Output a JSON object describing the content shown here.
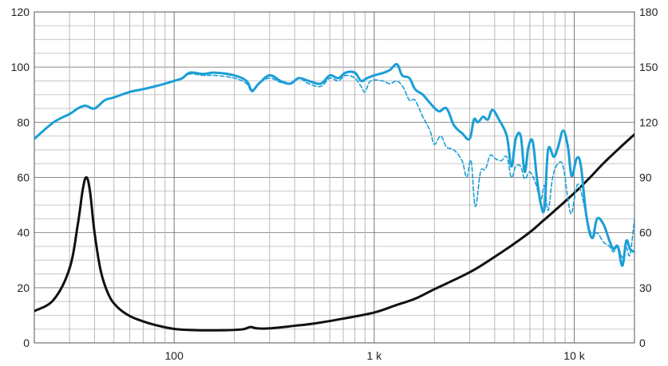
{
  "chart_data": {
    "type": "line",
    "title": "",
    "xlabel": "",
    "ylabel": "",
    "y2label": "",
    "xscale": "log",
    "xlim": [
      20,
      20000
    ],
    "ylim": [
      0,
      120
    ],
    "y2lim": [
      0,
      180
    ],
    "grid": true,
    "x_ticks": [
      {
        "value": 100,
        "label": "100"
      },
      {
        "value": 1000,
        "label": "1 k"
      },
      {
        "value": 10000,
        "label": "10 k"
      }
    ],
    "y_ticks": [
      {
        "value": 0,
        "label": "0"
      },
      {
        "value": 20,
        "label": "20"
      },
      {
        "value": 40,
        "label": "40"
      },
      {
        "value": 60,
        "label": "60"
      },
      {
        "value": 80,
        "label": "80"
      },
      {
        "value": 100,
        "label": "100"
      },
      {
        "value": 120,
        "label": "120"
      }
    ],
    "y2_ticks": [
      {
        "value": 0,
        "label": "0"
      },
      {
        "value": 30,
        "label": "30"
      },
      {
        "value": 60,
        "label": "60"
      },
      {
        "value": 90,
        "label": "90"
      },
      {
        "value": 120,
        "label": "120"
      },
      {
        "value": 150,
        "label": "150"
      },
      {
        "value": 180,
        "label": "180"
      }
    ],
    "series": [
      {
        "axis": "y2",
        "style": "solid",
        "color": "#111111",
        "points": [
          [
            20,
            17.3
          ],
          [
            25,
            23.5
          ],
          [
            30,
            40.5
          ],
          [
            33,
            64.5
          ],
          [
            35,
            84
          ],
          [
            36.5,
            90
          ],
          [
            38,
            82
          ],
          [
            40,
            60
          ],
          [
            43,
            39
          ],
          [
            47,
            26.3
          ],
          [
            52,
            19.5
          ],
          [
            60,
            14.6
          ],
          [
            70,
            11.7
          ],
          [
            80,
            9.8
          ],
          [
            100,
            7.6
          ],
          [
            130,
            6.9
          ],
          [
            180,
            6.9
          ],
          [
            220,
            7.4
          ],
          [
            240,
            8.6
          ],
          [
            260,
            7.9
          ],
          [
            300,
            7.9
          ],
          [
            400,
            9.3
          ],
          [
            500,
            10.5
          ],
          [
            700,
            13.2
          ],
          [
            1000,
            16.5
          ],
          [
            1300,
            20.7
          ],
          [
            1600,
            24
          ],
          [
            2000,
            29.2
          ],
          [
            3000,
            38.4
          ],
          [
            4000,
            46.8
          ],
          [
            5000,
            53.9
          ],
          [
            6000,
            60.2
          ],
          [
            7000,
            66.5
          ],
          [
            8000,
            72
          ],
          [
            10000,
            81.5
          ],
          [
            12000,
            90
          ],
          [
            14000,
            97.7
          ],
          [
            17000,
            106.4
          ],
          [
            20000,
            113.4
          ]
        ]
      },
      {
        "axis": "y",
        "style": "solid",
        "color": "#1a9ed6",
        "points": [
          [
            20,
            74
          ],
          [
            25,
            80
          ],
          [
            30,
            83
          ],
          [
            33,
            85
          ],
          [
            36,
            86
          ],
          [
            40,
            85
          ],
          [
            45,
            88
          ],
          [
            50,
            89
          ],
          [
            60,
            91
          ],
          [
            70,
            92
          ],
          [
            80,
            93
          ],
          [
            90,
            94
          ],
          [
            100,
            95
          ],
          [
            110,
            96
          ],
          [
            120,
            98
          ],
          [
            140,
            97.5
          ],
          [
            160,
            98
          ],
          [
            200,
            97
          ],
          [
            230,
            95
          ],
          [
            245,
            91.5
          ],
          [
            265,
            94
          ],
          [
            300,
            97
          ],
          [
            340,
            95
          ],
          [
            380,
            94
          ],
          [
            420,
            96
          ],
          [
            470,
            95
          ],
          [
            540,
            94
          ],
          [
            600,
            97
          ],
          [
            660,
            96
          ],
          [
            720,
            98
          ],
          [
            800,
            98
          ],
          [
            860,
            95
          ],
          [
            920,
            96
          ],
          [
            1000,
            97
          ],
          [
            1120,
            98
          ],
          [
            1200,
            99
          ],
          [
            1300,
            101
          ],
          [
            1380,
            97
          ],
          [
            1500,
            96
          ],
          [
            1600,
            92
          ],
          [
            1750,
            90
          ],
          [
            1900,
            87
          ],
          [
            2100,
            84
          ],
          [
            2300,
            85
          ],
          [
            2500,
            79
          ],
          [
            2750,
            76
          ],
          [
            3000,
            74
          ],
          [
            3150,
            81
          ],
          [
            3300,
            80
          ],
          [
            3500,
            82
          ],
          [
            3700,
            81
          ],
          [
            3900,
            84.5
          ],
          [
            4200,
            81
          ],
          [
            4600,
            75
          ],
          [
            4850,
            64
          ],
          [
            5100,
            74
          ],
          [
            5400,
            75
          ],
          [
            5650,
            62
          ],
          [
            5900,
            71
          ],
          [
            6200,
            73
          ],
          [
            6500,
            60
          ],
          [
            6800,
            50.5
          ],
          [
            7100,
            49
          ],
          [
            7400,
            70
          ],
          [
            7900,
            67.5
          ],
          [
            8300,
            71
          ],
          [
            8800,
            77
          ],
          [
            9300,
            71
          ],
          [
            9700,
            60.5
          ],
          [
            10300,
            67
          ],
          [
            10800,
            64
          ],
          [
            11500,
            46
          ],
          [
            12300,
            38
          ],
          [
            13000,
            45
          ],
          [
            14000,
            43
          ],
          [
            15000,
            37
          ],
          [
            15700,
            34
          ],
          [
            16500,
            35
          ],
          [
            17400,
            28
          ],
          [
            18200,
            37
          ],
          [
            19000,
            34
          ],
          [
            20000,
            33
          ]
        ]
      },
      {
        "axis": "y",
        "style": "dashed",
        "color": "#1a9ed6",
        "points": [
          [
            20,
            74
          ],
          [
            25,
            80
          ],
          [
            30,
            83
          ],
          [
            33,
            85
          ],
          [
            36,
            86
          ],
          [
            40,
            85
          ],
          [
            45,
            88
          ],
          [
            50,
            89
          ],
          [
            60,
            91
          ],
          [
            70,
            92
          ],
          [
            80,
            93
          ],
          [
            90,
            94
          ],
          [
            100,
            95
          ],
          [
            110,
            96
          ],
          [
            120,
            97.5
          ],
          [
            140,
            97
          ],
          [
            160,
            97
          ],
          [
            200,
            96
          ],
          [
            230,
            94
          ],
          [
            245,
            91
          ],
          [
            265,
            94
          ],
          [
            300,
            96
          ],
          [
            340,
            94.5
          ],
          [
            380,
            94
          ],
          [
            420,
            96
          ],
          [
            470,
            94
          ],
          [
            540,
            93
          ],
          [
            600,
            96
          ],
          [
            660,
            95
          ],
          [
            720,
            97
          ],
          [
            800,
            96
          ],
          [
            860,
            93
          ],
          [
            900,
            91
          ],
          [
            960,
            95
          ],
          [
            1100,
            95
          ],
          [
            1200,
            94
          ],
          [
            1300,
            95
          ],
          [
            1400,
            92.5
          ],
          [
            1500,
            88
          ],
          [
            1600,
            88
          ],
          [
            1750,
            82
          ],
          [
            1900,
            77
          ],
          [
            2000,
            72
          ],
          [
            2150,
            75
          ],
          [
            2300,
            71
          ],
          [
            2500,
            70
          ],
          [
            2750,
            66
          ],
          [
            2900,
            60
          ],
          [
            3050,
            66
          ],
          [
            3200,
            49.5
          ],
          [
            3400,
            62
          ],
          [
            3600,
            63
          ],
          [
            3800,
            68
          ],
          [
            4000,
            67
          ],
          [
            4300,
            66
          ],
          [
            4600,
            67.5
          ],
          [
            4850,
            60
          ],
          [
            5100,
            64
          ],
          [
            5400,
            64
          ],
          [
            5650,
            59.5
          ],
          [
            6000,
            62
          ],
          [
            6400,
            58
          ],
          [
            6800,
            52
          ],
          [
            7100,
            57
          ],
          [
            7400,
            48
          ],
          [
            7800,
            60
          ],
          [
            8300,
            65
          ],
          [
            8800,
            64
          ],
          [
            9300,
            52
          ],
          [
            9700,
            47
          ],
          [
            10300,
            57
          ],
          [
            10800,
            55
          ],
          [
            11500,
            46
          ],
          [
            12300,
            38.5
          ],
          [
            13000,
            40
          ],
          [
            14000,
            36.5
          ],
          [
            15000,
            35
          ],
          [
            15700,
            33
          ],
          [
            16500,
            35
          ],
          [
            17400,
            31
          ],
          [
            18200,
            34.5
          ],
          [
            19000,
            32
          ],
          [
            20000,
            45
          ]
        ]
      }
    ]
  }
}
